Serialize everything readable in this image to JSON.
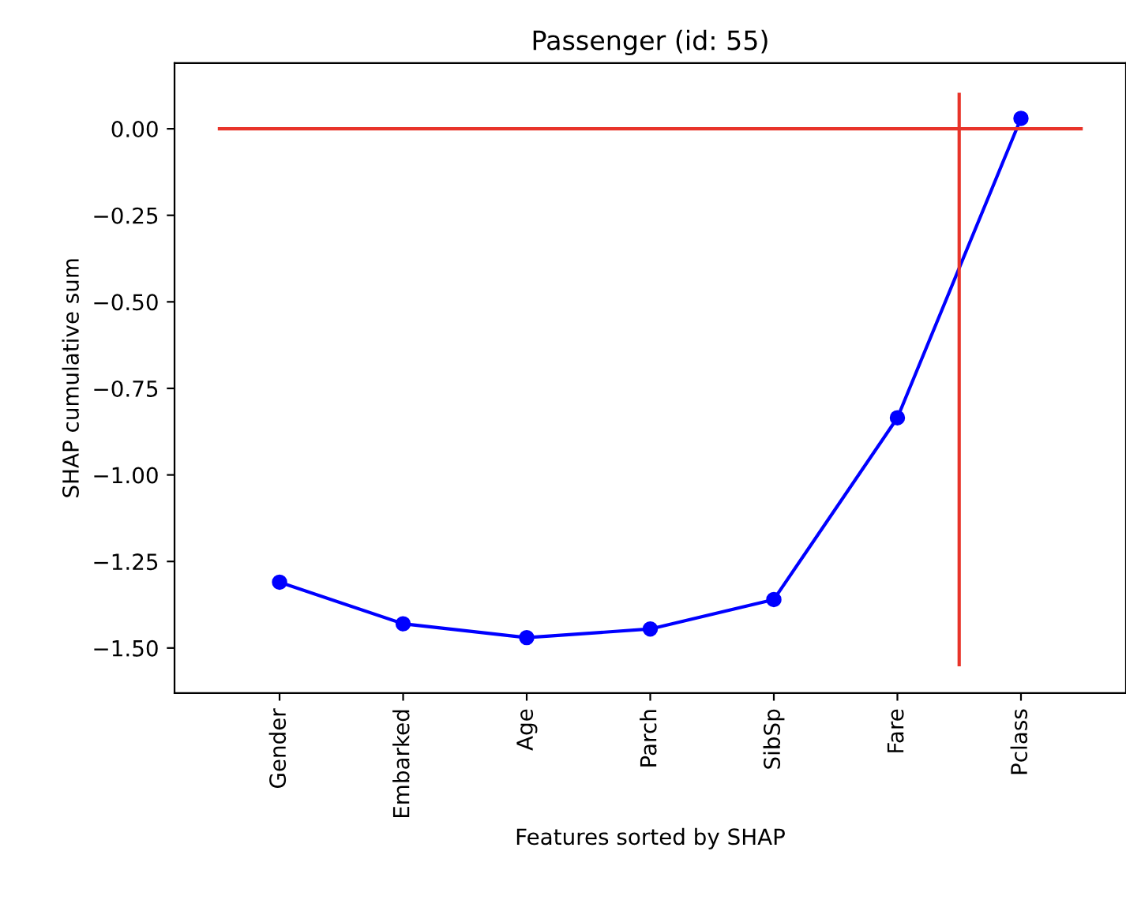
{
  "chart_data": {
    "type": "line",
    "title": "Passenger (id: 55)",
    "xlabel": "Features sorted by SHAP",
    "ylabel": "SHAP cumulative sum",
    "categories": [
      "Gender",
      "Embarked",
      "Age",
      "Parch",
      "SibSp",
      "Fare",
      "Pclass"
    ],
    "series": [
      {
        "color": "#0000ff",
        "values": [
          -1.31,
          -1.43,
          -1.47,
          -1.445,
          -1.36,
          -0.835,
          0.03
        ]
      }
    ],
    "marker": "circle",
    "line_style": "solid",
    "grid": false,
    "legend": false,
    "ylim": [
      -1.63,
      0.19
    ],
    "yticks": [
      {
        "value": 0,
        "label": "0.00"
      },
      {
        "value": -0.25,
        "label": "−0.25"
      },
      {
        "value": -0.5,
        "label": "−0.50"
      },
      {
        "value": -0.75,
        "label": "−0.75"
      },
      {
        "value": -1.0,
        "label": "−1.00"
      },
      {
        "value": -1.25,
        "label": "−1.25"
      },
      {
        "value": -1.5,
        "label": "−1.50"
      }
    ],
    "ref_lines": [
      {
        "axis": "y",
        "value": 0,
        "color": "#e8342a"
      }
    ]
  }
}
